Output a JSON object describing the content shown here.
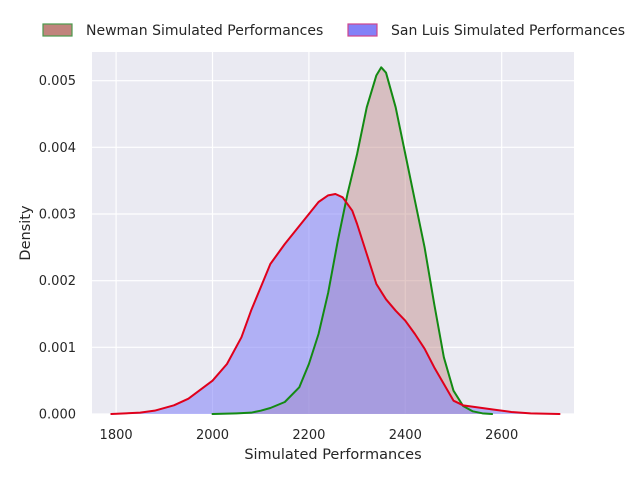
{
  "chart_data": {
    "type": "area",
    "title": "",
    "xlabel": "Simulated Performances",
    "ylabel": "Density",
    "xlim": [
      1750,
      2750
    ],
    "ylim": [
      0,
      0.00543
    ],
    "xticks": [
      1800,
      2000,
      2200,
      2400,
      2600
    ],
    "xtick_labels": [
      "1800",
      "2000",
      "2200",
      "2400",
      "2600"
    ],
    "yticks": [
      0.0,
      0.001,
      0.002,
      0.003,
      0.004,
      0.005
    ],
    "ytick_labels": [
      "0.000",
      "0.001",
      "0.002",
      "0.003",
      "0.004",
      "0.005"
    ],
    "grid": true,
    "legend": {
      "placement": "top (outside)",
      "columns": 2
    },
    "series": [
      {
        "name": "Newman Simulated Performances",
        "fill_color": "#c08986",
        "fill_opacity": 0.45,
        "line_color": "#138a13",
        "legend_fill": "#c0847c",
        "legend_edge": "#4c9a4c",
        "x": [
          2000,
          2050,
          2080,
          2100,
          2120,
          2150,
          2180,
          2200,
          2220,
          2240,
          2260,
          2280,
          2300,
          2320,
          2340,
          2350,
          2360,
          2380,
          2400,
          2420,
          2440,
          2460,
          2480,
          2500,
          2520,
          2540,
          2560,
          2580
        ],
        "values": [
          0.0,
          1e-05,
          2e-05,
          5e-05,
          9e-05,
          0.00018,
          0.0004,
          0.00075,
          0.0012,
          0.00182,
          0.0026,
          0.0033,
          0.0039,
          0.0046,
          0.00508,
          0.0052,
          0.00512,
          0.0046,
          0.0039,
          0.0032,
          0.0025,
          0.00165,
          0.00085,
          0.00035,
          0.00012,
          4e-05,
          1e-05,
          0.0
        ]
      },
      {
        "name": "San Luis Simulated Performances",
        "fill_color": "#7f7ff7",
        "fill_opacity": 0.55,
        "line_color": "#e0001b",
        "legend_fill": "#8380f7",
        "legend_edge": "#d0458c",
        "x": [
          1790,
          1850,
          1880,
          1920,
          1950,
          2000,
          2030,
          2060,
          2080,
          2100,
          2120,
          2150,
          2180,
          2200,
          2220,
          2240,
          2255,
          2270,
          2290,
          2300,
          2320,
          2340,
          2360,
          2380,
          2400,
          2420,
          2440,
          2460,
          2480,
          2500,
          2520,
          2550,
          2580,
          2620,
          2660,
          2720
        ],
        "values": [
          0.0,
          2e-05,
          5e-05,
          0.00013,
          0.00023,
          0.0005,
          0.00075,
          0.00115,
          0.00155,
          0.0019,
          0.00225,
          0.00255,
          0.00282,
          0.003,
          0.00318,
          0.00328,
          0.0033,
          0.00325,
          0.00305,
          0.00285,
          0.0024,
          0.00195,
          0.00172,
          0.00155,
          0.0014,
          0.0012,
          0.00098,
          0.0007,
          0.00045,
          0.0002,
          0.00013,
          0.0001,
          7e-05,
          3e-05,
          1e-05,
          0.0
        ]
      }
    ]
  }
}
